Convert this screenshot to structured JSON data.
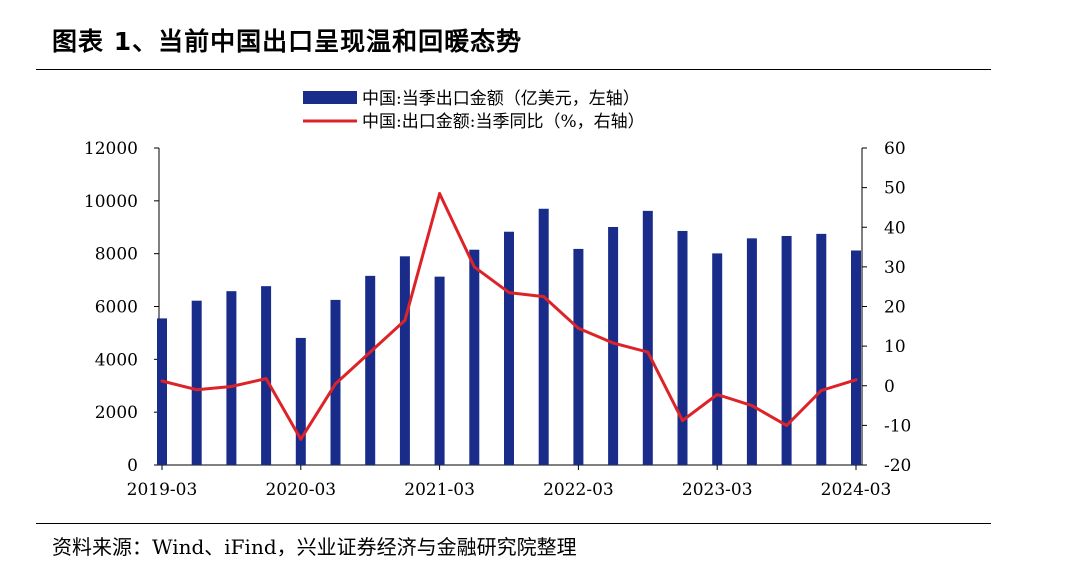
{
  "figure": {
    "title": "图表 1、当前中国出口呈现温和回暖态势",
    "source": "资料来源：Wind、iFind，兴业证券经济与金融研究院整理"
  },
  "colors": {
    "bar": "#1a2c8a",
    "line": "#dd2328",
    "axis": "#000000"
  },
  "chart_data": {
    "type": "bar+line",
    "categories": [
      "2019-03",
      "2019-06",
      "2019-09",
      "2019-12",
      "2020-03",
      "2020-06",
      "2020-09",
      "2020-12",
      "2021-03",
      "2021-06",
      "2021-09",
      "2021-12",
      "2022-03",
      "2022-06",
      "2022-09",
      "2022-12",
      "2023-03",
      "2023-06",
      "2023-09",
      "2023-12",
      "2024-03"
    ],
    "x_tick_labels": [
      "2019-03",
      "2020-03",
      "2021-03",
      "2022-03",
      "2023-03",
      "2024-03"
    ],
    "series": [
      {
        "name": "中国:当季出口金额（亿美元，左轴）",
        "type": "bar",
        "axis": "left",
        "values": [
          5550,
          6220,
          6580,
          6770,
          4810,
          6250,
          7160,
          7900,
          7130,
          8150,
          8830,
          9700,
          8180,
          9010,
          9620,
          8860,
          8010,
          8580,
          8670,
          8750,
          8120
        ]
      },
      {
        "name": "中国:出口金额:当季同比（%，右轴）",
        "type": "line",
        "axis": "right",
        "values": [
          1.2,
          -1.0,
          -0.2,
          1.8,
          -13.5,
          0.5,
          8.5,
          16.5,
          48.5,
          30.0,
          23.5,
          22.5,
          14.5,
          10.8,
          8.5,
          -8.8,
          -2.2,
          -5.0,
          -10.0,
          -1.2,
          1.5
        ]
      }
    ],
    "left_axis": {
      "min": 0,
      "max": 12000,
      "ticks": [
        0,
        2000,
        4000,
        6000,
        8000,
        10000,
        12000
      ]
    },
    "right_axis": {
      "min": -20,
      "max": 60,
      "ticks": [
        -20,
        -10,
        0,
        10,
        20,
        30,
        40,
        50,
        60
      ]
    },
    "legend_position": "top-center"
  }
}
